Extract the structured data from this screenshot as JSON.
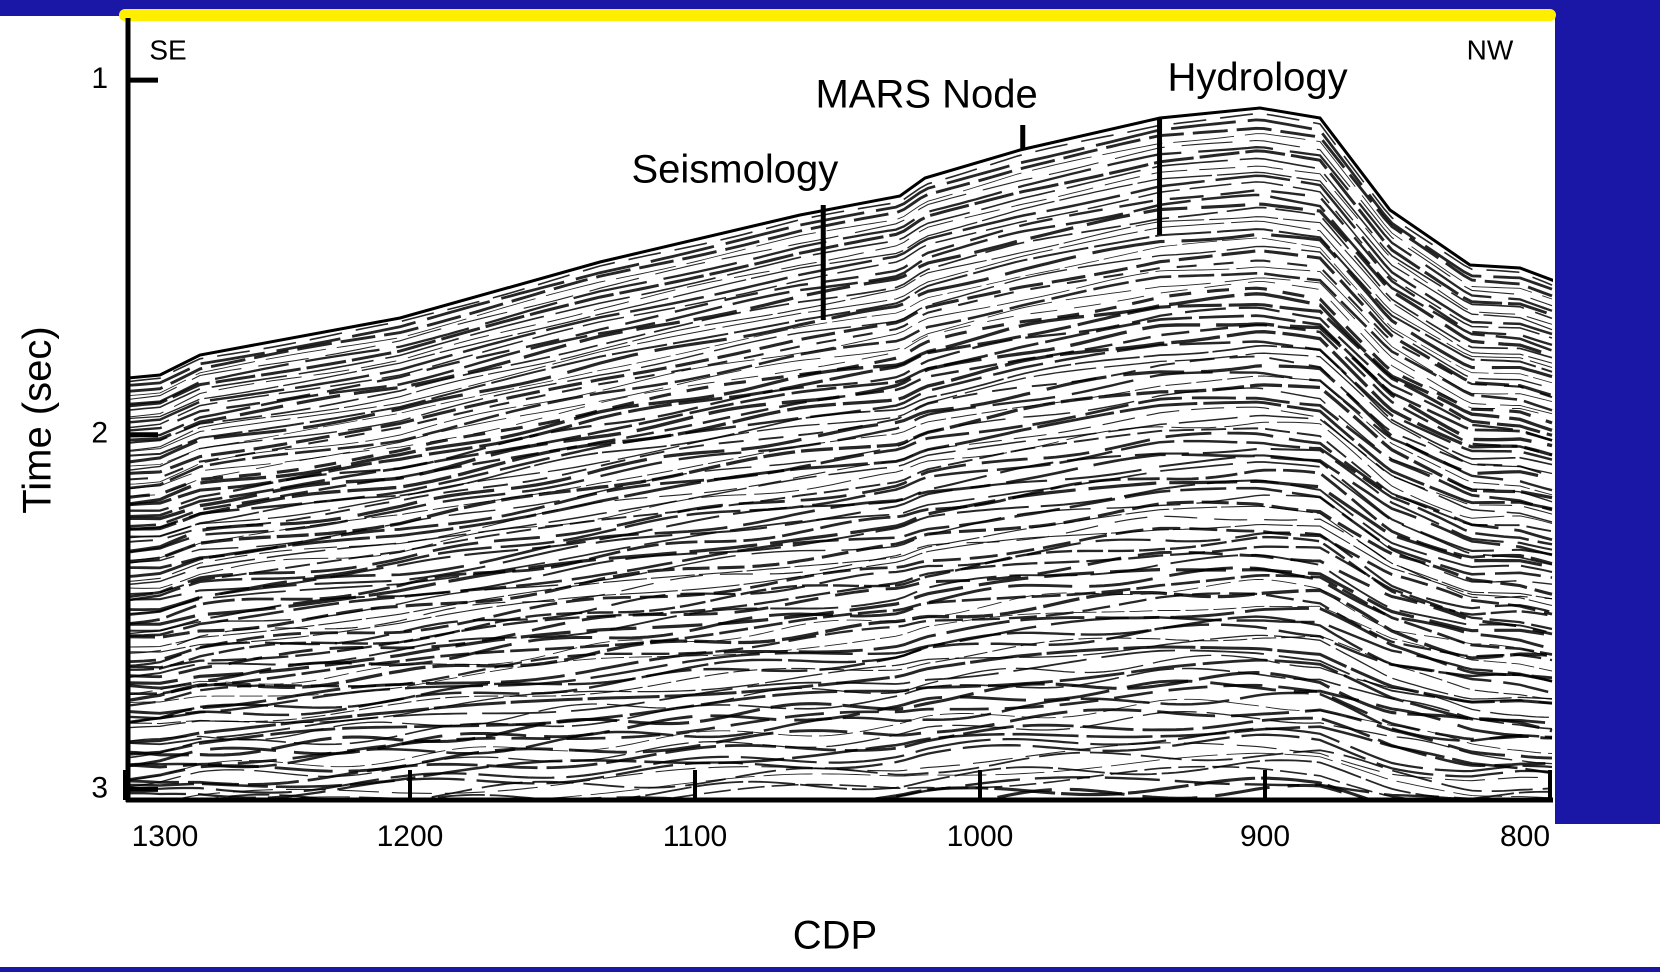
{
  "chart_data": {
    "type": "seismic-section",
    "x_label": "CDP",
    "y_label": "Time (sec)",
    "xlim": [
      1300,
      800
    ],
    "ylim": [
      0.825,
      3.03
    ],
    "xticks": [
      1300,
      1200,
      1100,
      1000,
      900,
      800
    ],
    "yticks": [
      1,
      2,
      3
    ],
    "direction_left": "SE",
    "direction_right": "NW",
    "annotations": [
      {
        "text": "Seismology",
        "x": 1055
      },
      {
        "text": "MARS Node",
        "x": 985
      },
      {
        "text": "Hydrology",
        "x": 937
      }
    ]
  }
}
